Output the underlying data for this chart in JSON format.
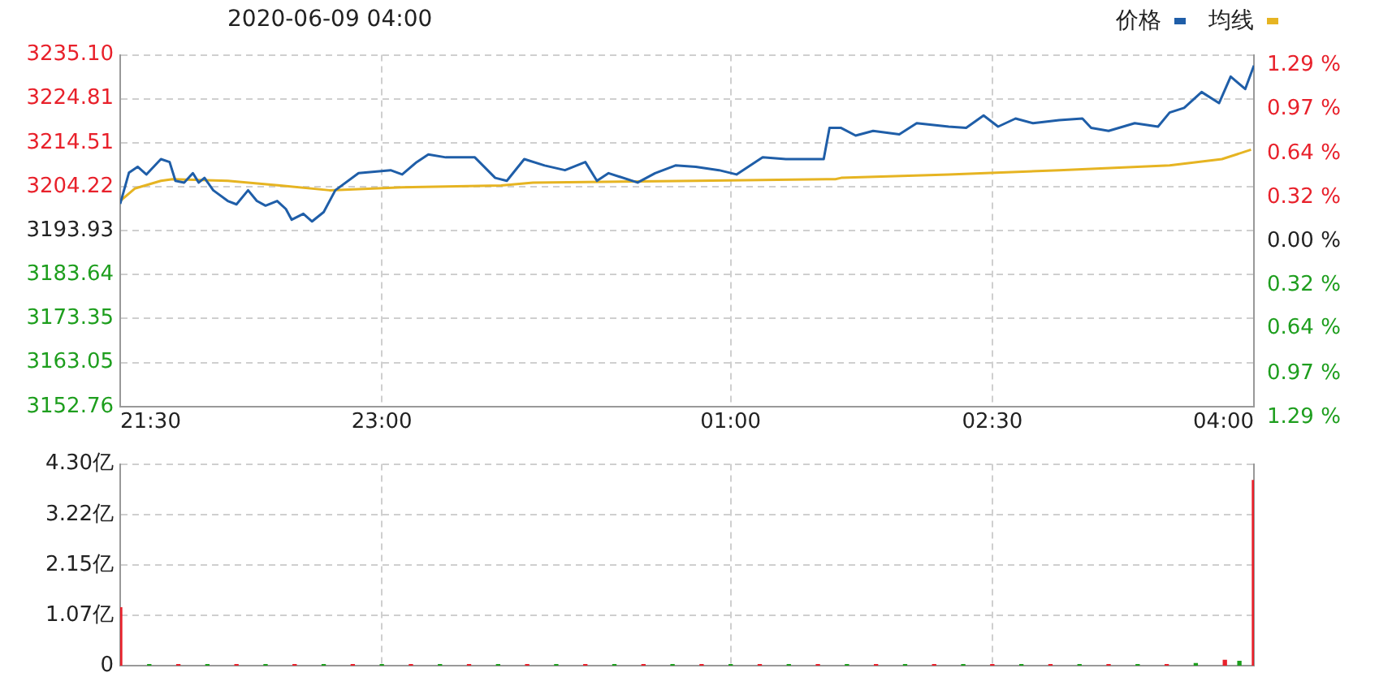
{
  "chart_data": [
    {
      "type": "line",
      "title": "2020-06-09 04:00",
      "legend": "top right",
      "grid": true,
      "marker": "none",
      "xlim": [
        "2020-06-08T21:30",
        "2020-06-09T04:00"
      ],
      "xticks": [
        {
          "value": "2020-06-08T21:30",
          "label": "21:30"
        },
        {
          "value": "2020-06-08T23:00",
          "label": "23:00"
        },
        {
          "value": "2020-06-09T01:00",
          "label": "01:00"
        },
        {
          "value": "2020-06-09T02:30",
          "label": "02:30"
        },
        {
          "value": "2020-06-09T04:00",
          "label": "04:00"
        }
      ],
      "ylim": [
        3152.76,
        3235.1
      ],
      "yticks": [
        {
          "value": 3152.76,
          "label": "3152.76"
        },
        {
          "value": 3163.05,
          "label": "3163.05"
        },
        {
          "value": 3173.35,
          "label": "3173.35"
        },
        {
          "value": 3183.64,
          "label": "3183.64"
        },
        {
          "value": 3193.93,
          "label": "3193.93"
        },
        {
          "value": 3204.22,
          "label": "3204.22"
        },
        {
          "value": 3214.51,
          "label": "3214.51"
        },
        {
          "value": 3224.81,
          "label": "3224.81"
        },
        {
          "value": 3235.1,
          "label": "3235.10"
        }
      ],
      "y2lim": [
        -1.29,
        1.29
      ],
      "y2ticks": [
        {
          "value": -1.29,
          "label": "1.29 %"
        },
        {
          "value": -0.97,
          "label": "0.97 %"
        },
        {
          "value": -0.64,
          "label": "0.64 %"
        },
        {
          "value": -0.32,
          "label": "0.32 %"
        },
        {
          "value": 0,
          "label": "0.00 %"
        },
        {
          "value": 0.32,
          "label": "0.32 %"
        },
        {
          "value": 0.64,
          "label": "0.64 %"
        },
        {
          "value": 0.97,
          "label": "0.97 %"
        },
        {
          "value": 1.29,
          "label": "1.29 %"
        }
      ],
      "series": [
        {
          "name": "价格",
          "color": "#1f5ea8",
          "x": [
            "2020-06-08T21:30",
            "2020-06-08T21:33",
            "2020-06-08T21:36",
            "2020-06-08T21:39",
            "2020-06-08T21:44",
            "2020-06-08T21:47",
            "2020-06-08T21:49",
            "2020-06-08T21:52",
            "2020-06-08T21:55",
            "2020-06-08T21:57",
            "2020-06-08T21:59",
            "2020-06-08T22:02",
            "2020-06-08T22:07",
            "2020-06-08T22:10",
            "2020-06-08T22:14",
            "2020-06-08T22:17",
            "2020-06-08T22:20",
            "2020-06-08T22:24",
            "2020-06-08T22:27",
            "2020-06-08T22:29",
            "2020-06-08T22:33",
            "2020-06-08T22:36",
            "2020-06-08T22:40",
            "2020-06-08T22:44",
            "2020-06-08T22:52",
            "2020-06-08T23:03",
            "2020-06-08T23:07",
            "2020-06-08T23:12",
            "2020-06-08T23:16",
            "2020-06-08T23:22",
            "2020-06-08T23:32",
            "2020-06-08T23:39",
            "2020-06-08T23:43",
            "2020-06-08T23:49",
            "2020-06-08T23:56",
            "2020-06-09T00:03",
            "2020-06-09T00:10",
            "2020-06-09T00:14",
            "2020-06-09T00:18",
            "2020-06-09T00:28",
            "2020-06-09T00:34",
            "2020-06-09T00:41",
            "2020-06-09T00:48",
            "2020-06-09T00:56",
            "2020-06-09T01:02",
            "2020-06-09T01:11",
            "2020-06-09T01:19",
            "2020-06-09T01:32",
            "2020-06-09T01:34",
            "2020-06-09T01:38",
            "2020-06-09T01:43",
            "2020-06-09T01:49",
            "2020-06-09T01:58",
            "2020-06-09T02:04",
            "2020-06-09T02:15",
            "2020-06-09T02:21",
            "2020-06-09T02:27",
            "2020-06-09T02:32",
            "2020-06-09T02:38",
            "2020-06-09T02:44",
            "2020-06-09T02:53",
            "2020-06-09T03:01",
            "2020-06-09T03:04",
            "2020-06-09T03:10",
            "2020-06-09T03:19",
            "2020-06-09T03:27",
            "2020-06-09T03:31",
            "2020-06-09T03:36",
            "2020-06-09T03:42",
            "2020-06-09T03:48",
            "2020-06-09T03:52",
            "2020-06-09T03:57",
            "2020-06-09T04:00"
          ],
          "values": [
            3200.2,
            3207.5,
            3208.9,
            3207.1,
            3210.7,
            3210.0,
            3205.6,
            3205.2,
            3207.4,
            3205.2,
            3206.3,
            3203.4,
            3200.9,
            3200.1,
            3203.4,
            3200.9,
            3199.8,
            3200.9,
            3199.0,
            3196.5,
            3197.9,
            3196.1,
            3198.3,
            3203.4,
            3207.4,
            3208.1,
            3207.1,
            3210.0,
            3211.8,
            3211.1,
            3211.1,
            3206.3,
            3205.6,
            3210.7,
            3209.2,
            3208.1,
            3210.0,
            3205.6,
            3207.4,
            3205.2,
            3207.4,
            3209.2,
            3208.9,
            3208.1,
            3207.1,
            3211.1,
            3210.7,
            3210.7,
            3218.0,
            3218.0,
            3216.2,
            3217.3,
            3216.5,
            3219.1,
            3218.3,
            3218.0,
            3220.9,
            3218.3,
            3220.2,
            3219.1,
            3219.8,
            3220.2,
            3218.0,
            3217.3,
            3219.1,
            3218.3,
            3221.6,
            3222.7,
            3226.4,
            3223.8,
            3230.0,
            3227.1,
            3232.6
          ]
        },
        {
          "name": "均线",
          "color": "#e6b422",
          "x": [
            "2020-06-08T21:30",
            "2020-06-08T21:35",
            "2020-06-08T21:44",
            "2020-06-08T21:48",
            "2020-06-08T22:07",
            "2020-06-08T22:25",
            "2020-06-08T22:42",
            "2020-06-08T23:07",
            "2020-06-08T23:41",
            "2020-06-08T23:52",
            "2020-06-09T00:48",
            "2020-06-09T01:36",
            "2020-06-09T01:38",
            "2020-06-09T02:15",
            "2020-06-09T02:53",
            "2020-06-09T03:31",
            "2020-06-09T03:49",
            "2020-06-09T03:59"
          ],
          "values": [
            3200.9,
            3203.8,
            3205.6,
            3206.0,
            3205.6,
            3204.5,
            3203.4,
            3204.1,
            3204.5,
            3205.2,
            3205.6,
            3206.0,
            3206.3,
            3207.1,
            3208.1,
            3209.2,
            3210.7,
            3212.9
          ]
        }
      ]
    },
    {
      "type": "bar",
      "grid": true,
      "tick_labels": "y",
      "xlim": [
        "2020-06-08T21:30",
        "2020-06-09T04:00"
      ],
      "xticks": [
        {
          "value": "2020-06-08T21:30",
          "label": null
        },
        {
          "value": "2020-06-08T23:00",
          "label": null
        },
        {
          "value": "2020-06-09T01:00",
          "label": null
        },
        {
          "value": "2020-06-09T02:30",
          "label": null
        },
        {
          "value": "2020-06-09T04:00",
          "label": null
        }
      ],
      "ylim": [
        0,
        4.3
      ],
      "yticks": [
        {
          "value": 0,
          "label": "0"
        },
        {
          "value": 1.07,
          "label": "1.07亿"
        },
        {
          "value": 2.15,
          "label": "2.15亿"
        },
        {
          "value": 3.22,
          "label": "3.22亿"
        },
        {
          "value": 4.3,
          "label": "4.30亿"
        }
      ],
      "x": [
        "2020-06-08T21:30",
        "2020-06-08T21:40",
        "2020-06-08T21:50",
        "2020-06-08T22:00",
        "2020-06-08T22:10",
        "2020-06-08T22:20",
        "2020-06-08T22:30",
        "2020-06-08T22:40",
        "2020-06-08T22:50",
        "2020-06-08T23:00",
        "2020-06-08T23:10",
        "2020-06-08T23:20",
        "2020-06-08T23:30",
        "2020-06-08T23:40",
        "2020-06-08T23:50",
        "2020-06-09T00:00",
        "2020-06-09T00:10",
        "2020-06-09T00:20",
        "2020-06-09T00:30",
        "2020-06-09T00:40",
        "2020-06-09T00:50",
        "2020-06-09T01:00",
        "2020-06-09T01:10",
        "2020-06-09T01:20",
        "2020-06-09T01:30",
        "2020-06-09T01:40",
        "2020-06-09T01:50",
        "2020-06-09T02:00",
        "2020-06-09T02:10",
        "2020-06-09T02:20",
        "2020-06-09T02:30",
        "2020-06-09T02:40",
        "2020-06-09T02:50",
        "2020-06-09T03:00",
        "2020-06-09T03:10",
        "2020-06-09T03:20",
        "2020-06-09T03:30",
        "2020-06-09T03:40",
        "2020-06-09T03:50",
        "2020-06-09T03:55",
        "2020-06-09T04:00"
      ],
      "values": [
        1.24,
        0.03,
        0.03,
        0.03,
        0.03,
        0.03,
        0.03,
        0.03,
        0.03,
        0.03,
        0.03,
        0.03,
        0.03,
        0.03,
        0.03,
        0.03,
        0.03,
        0.03,
        0.03,
        0.03,
        0.03,
        0.03,
        0.03,
        0.03,
        0.03,
        0.03,
        0.03,
        0.03,
        0.03,
        0.03,
        0.03,
        0.03,
        0.03,
        0.03,
        0.03,
        0.03,
        0.03,
        0.05,
        0.12,
        0.1,
        3.95
      ],
      "colors": [
        "#e8212b",
        "#1e9e1e",
        "#e8212b",
        "#1e9e1e",
        "#e8212b",
        "#1e9e1e",
        "#e8212b",
        "#1e9e1e",
        "#e8212b",
        "#1e9e1e",
        "#e8212b",
        "#1e9e1e",
        "#e8212b",
        "#1e9e1e",
        "#e8212b",
        "#1e9e1e",
        "#e8212b",
        "#1e9e1e",
        "#e8212b",
        "#1e9e1e",
        "#e8212b",
        "#1e9e1e",
        "#e8212b",
        "#1e9e1e",
        "#e8212b",
        "#1e9e1e",
        "#e8212b",
        "#1e9e1e",
        "#e8212b",
        "#1e9e1e",
        "#e8212b",
        "#1e9e1e",
        "#e8212b",
        "#1e9e1e",
        "#e8212b",
        "#1e9e1e",
        "#e8212b",
        "#1e9e1e",
        "#e8212b",
        "#1e9e1e",
        "#e8212b"
      ]
    }
  ]
}
